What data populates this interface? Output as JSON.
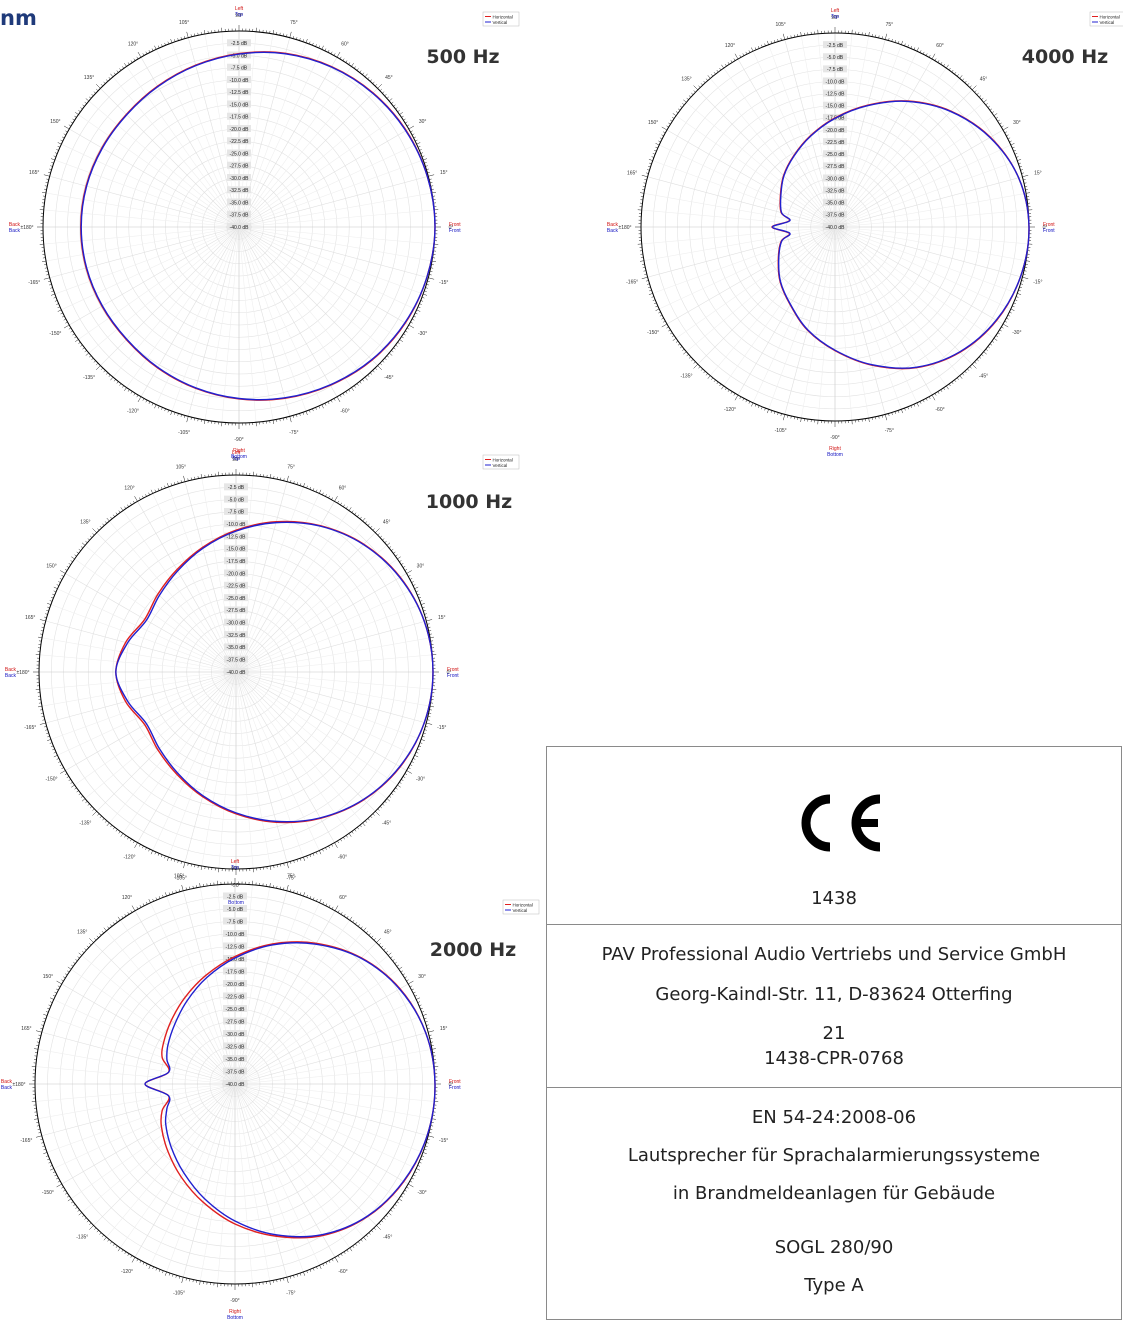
{
  "page": {
    "heading": "nm"
  },
  "chart_data": [
    {
      "type": "polar",
      "title": "500 Hz",
      "rlim_db": [
        -40,
        0
      ],
      "radial_tick_labels": [
        "-2.5 dB",
        "-5.0 dB",
        "-7.5 dB",
        "-10.0 dB",
        "-12.5 dB",
        "-15.0 dB",
        "-17.5 dB",
        "-20.0 dB",
        "-22.5 dB",
        "-25.0 dB",
        "-27.5 dB",
        "-30.0 dB",
        "-32.5 dB",
        "-35.0 dB",
        "-37.5 dB",
        "-40.0 dB"
      ],
      "angle_labels": [
        "90°",
        "75°",
        "60°",
        "45°",
        "30°",
        "15°",
        "0°",
        "-15°",
        "-30°",
        "-45°",
        "-60°",
        "-75°",
        "-90°",
        "-105°",
        "-120°",
        "-135°",
        "-150°",
        "-165°",
        "±180°",
        "165°",
        "150°",
        "135°",
        "120°",
        "105°"
      ],
      "direction_labels": {
        "top_1": "Left",
        "top_2": "Top",
        "bottom_1": "Right",
        "bottom_2": "Bottom",
        "left_1": "Back",
        "left_2": "Back",
        "right_1": "Front",
        "right_2": "Front"
      },
      "grid": true,
      "legend": "top-right",
      "angles_deg": [
        0,
        15,
        30,
        45,
        60,
        75,
        90,
        105,
        120,
        135,
        150,
        165,
        180,
        -165,
        -150,
        -135,
        -120,
        -105,
        -90,
        -75,
        -60,
        -45,
        -30,
        -15
      ],
      "series": [
        {
          "name": "Horizontal",
          "color": "#e02020",
          "values_db": [
            0,
            -0.2,
            -0.6,
            -1.3,
            -2.2,
            -3.3,
            -4.6,
            -5.8,
            -6.8,
            -7.5,
            -7.7,
            -7.7,
            -7.7,
            -7.7,
            -7.7,
            -7.5,
            -6.8,
            -5.9,
            -4.9,
            -3.8,
            -2.7,
            -1.6,
            -0.8,
            -0.3
          ]
        },
        {
          "name": "Vertical",
          "color": "#2020d0",
          "values_db": [
            0,
            -0.2,
            -0.7,
            -1.4,
            -2.3,
            -3.4,
            -4.7,
            -5.9,
            -6.9,
            -7.6,
            -7.8,
            -7.8,
            -7.8,
            -7.8,
            -7.8,
            -7.6,
            -6.9,
            -6.0,
            -5.0,
            -3.9,
            -2.8,
            -1.7,
            -0.9,
            -0.3
          ]
        }
      ]
    },
    {
      "type": "polar",
      "title": "4000 Hz",
      "rlim_db": [
        -40,
        0
      ],
      "radial_tick_labels": [
        "-2.5 dB",
        "-5.0 dB",
        "-7.5 dB",
        "-10.0 dB",
        "-12.5 dB",
        "-15.0 dB",
        "-17.5 dB",
        "-20.0 dB",
        "-22.5 dB",
        "-25.0 dB",
        "-27.5 dB",
        "-30.0 dB",
        "-32.5 dB",
        "-35.0 dB",
        "-37.5 dB",
        "-40.0 dB"
      ],
      "angle_labels": [
        "90°",
        "75°",
        "60°",
        "45°",
        "30°",
        "15°",
        "0°",
        "-15°",
        "-30°",
        "-45°",
        "-60°",
        "-75°",
        "-90°",
        "-105°",
        "-120°",
        "-135°",
        "-150°",
        "-165°",
        "±180°",
        "165°",
        "150°",
        "135°",
        "120°",
        "105°"
      ],
      "direction_labels": {
        "top_1": "Left",
        "top_2": "Top",
        "bottom_1": "Right",
        "bottom_2": "Bottom",
        "left_1": "Back",
        "left_2": "Back",
        "right_1": "Front",
        "right_2": "Front"
      },
      "grid": true,
      "legend": "top-right",
      "angles_deg": [
        0,
        15,
        30,
        45,
        60,
        75,
        90,
        105,
        120,
        135,
        150,
        165,
        172,
        180,
        -172,
        -165,
        -150,
        -135,
        -120,
        -105,
        -90,
        -75,
        -60,
        -45,
        -30,
        -15
      ],
      "series": [
        {
          "name": "Horizontal",
          "color": "#e02020",
          "values_db": [
            0,
            -0.8,
            -3.0,
            -6.2,
            -10.0,
            -14.0,
            -17.5,
            -20.5,
            -23.0,
            -25.0,
            -27.0,
            -28.5,
            -30.5,
            -27.0,
            -30.5,
            -28.5,
            -26.5,
            -24.0,
            -21.5,
            -18.0,
            -14.5,
            -10.5,
            -6.5,
            -3.5,
            -1.5,
            -0.4
          ]
        },
        {
          "name": "Vertical",
          "color": "#2020d0",
          "values_db": [
            0,
            -0.8,
            -3.1,
            -6.3,
            -10.1,
            -14.1,
            -17.6,
            -20.6,
            -23.1,
            -25.1,
            -27.1,
            -28.6,
            -30.6,
            -27.1,
            -30.6,
            -28.6,
            -26.6,
            -24.1,
            -21.6,
            -18.1,
            -14.6,
            -10.6,
            -6.6,
            -3.6,
            -1.6,
            -0.4
          ]
        }
      ]
    },
    {
      "type": "polar",
      "title": "1000 Hz",
      "rlim_db": [
        -40,
        0
      ],
      "radial_tick_labels": [
        "-2.5 dB",
        "-5.0 dB",
        "-7.5 dB",
        "-10.0 dB",
        "-12.5 dB",
        "-15.0 dB",
        "-17.5 dB",
        "-20.0 dB",
        "-22.5 dB",
        "-25.0 dB",
        "-27.5 dB",
        "-30.0 dB",
        "-32.5 dB",
        "-35.0 dB",
        "-37.5 dB",
        "-40.0 dB"
      ],
      "angle_labels": [
        "90°",
        "75°",
        "60°",
        "45°",
        "30°",
        "15°",
        "0°",
        "-15°",
        "-30°",
        "-45°",
        "-60°",
        "-75°",
        "-90°",
        "-105°",
        "-120°",
        "-135°",
        "-150°",
        "-165°",
        "±180°",
        "165°",
        "150°",
        "135°",
        "120°",
        "105°"
      ],
      "direction_labels": {
        "top_1": "Left",
        "top_2": "Top",
        "bottom_1": "Right",
        "bottom_2": "Bottom",
        "left_1": "Back",
        "left_2": "Back",
        "right_1": "Front",
        "right_2": "Front"
      },
      "grid": true,
      "legend": "top-right",
      "angles_deg": [
        0,
        15,
        30,
        45,
        60,
        75,
        90,
        105,
        120,
        135,
        150,
        165,
        180,
        -165,
        -150,
        -135,
        -120,
        -105,
        -90,
        -75,
        -60,
        -45,
        -30,
        -15
      ],
      "series": [
        {
          "name": "Horizontal",
          "color": "#e02020",
          "values_db": [
            0,
            -0.4,
            -1.5,
            -3.3,
            -5.7,
            -8.4,
            -11.2,
            -13.8,
            -16.0,
            -17.6,
            -18.6,
            -16.8,
            -15.6,
            -16.8,
            -18.6,
            -17.6,
            -16.0,
            -13.8,
            -11.2,
            -8.4,
            -5.7,
            -3.3,
            -1.5,
            -0.4
          ]
        },
        {
          "name": "Vertical",
          "color": "#2020d0",
          "values_db": [
            0,
            -0.4,
            -1.6,
            -3.4,
            -5.8,
            -8.6,
            -11.4,
            -14.0,
            -16.3,
            -18.0,
            -19.0,
            -17.2,
            -15.6,
            -17.2,
            -19.0,
            -18.0,
            -16.3,
            -14.0,
            -11.4,
            -8.6,
            -5.8,
            -3.4,
            -1.6,
            -0.4
          ]
        }
      ]
    },
    {
      "type": "polar",
      "title": "2000 Hz",
      "rlim_db": [
        -40,
        0
      ],
      "radial_tick_labels": [
        "-2.5 dB",
        "-5.0 dB",
        "-7.5 dB",
        "-10.0 dB",
        "-12.5 dB",
        "-15.0 dB",
        "-17.5 dB",
        "-20.0 dB",
        "-22.5 dB",
        "-25.0 dB",
        "-27.5 dB",
        "-30.0 dB",
        "-32.5 dB",
        "-35.0 dB",
        "-37.5 dB",
        "-40.0 dB"
      ],
      "angle_labels": [
        "90°",
        "75°",
        "60°",
        "45°",
        "30°",
        "15°",
        "0°",
        "-15°",
        "-30°",
        "-45°",
        "-60°",
        "-75°",
        "-90°",
        "-105°",
        "-120°",
        "-135°",
        "-150°",
        "-165°",
        "±180°",
        "165°",
        "150°",
        "135°",
        "120°",
        "105°"
      ],
      "direction_labels": {
        "top_1": "Left",
        "top_2": "Top",
        "bottom_1": "Right",
        "bottom_2": "Bottom",
        "left_1": "Back",
        "left_2": "Back",
        "right_1": "Front",
        "right_2": "Front"
      },
      "grid": true,
      "legend": "top-right",
      "angles_deg": [
        0,
        15,
        30,
        45,
        60,
        75,
        90,
        105,
        120,
        135,
        150,
        160,
        170,
        180,
        -170,
        -160,
        -150,
        -135,
        -120,
        -105,
        -90,
        -75,
        -60,
        -45,
        -30,
        -15
      ],
      "series": [
        {
          "name": "Horizontal",
          "color": "#e02020",
          "values_db": [
            0,
            -0.5,
            -1.9,
            -4.3,
            -7.5,
            -11.0,
            -14.5,
            -17.5,
            -20.0,
            -22.0,
            -23.5,
            -24.5,
            -26.5,
            -22.0,
            -26.5,
            -24.5,
            -23.0,
            -21.0,
            -18.5,
            -15.5,
            -12.0,
            -8.5,
            -5.0,
            -2.5,
            -1.0,
            -0.2
          ]
        },
        {
          "name": "Vertical",
          "color": "#2020d0",
          "values_db": [
            0,
            -0.5,
            -2.0,
            -4.4,
            -7.7,
            -11.2,
            -14.8,
            -18.0,
            -20.8,
            -23.0,
            -24.5,
            -25.5,
            -26.5,
            -22.0,
            -26.5,
            -25.5,
            -24.0,
            -22.0,
            -19.5,
            -16.3,
            -12.6,
            -8.8,
            -5.2,
            -2.6,
            -1.1,
            -0.2
          ]
        }
      ]
    }
  ],
  "certificate": {
    "ce_logo": "ce-mark",
    "notified_body": "1438",
    "company": "PAV Professional Audio Vertriebs und Service GmbH",
    "address": "Georg-Kaindl-Str. 11, D-83624 Otterfing",
    "year": "21",
    "cpr": "1438-CPR-0768",
    "standard": "EN 54-24:2008-06",
    "desc_line1": "Lautsprecher für Sprachalarmierungssysteme",
    "desc_line2": "in Brandmeldeanlagen für Gebäude",
    "model": "SOGL 280/90",
    "type": "Type A"
  }
}
